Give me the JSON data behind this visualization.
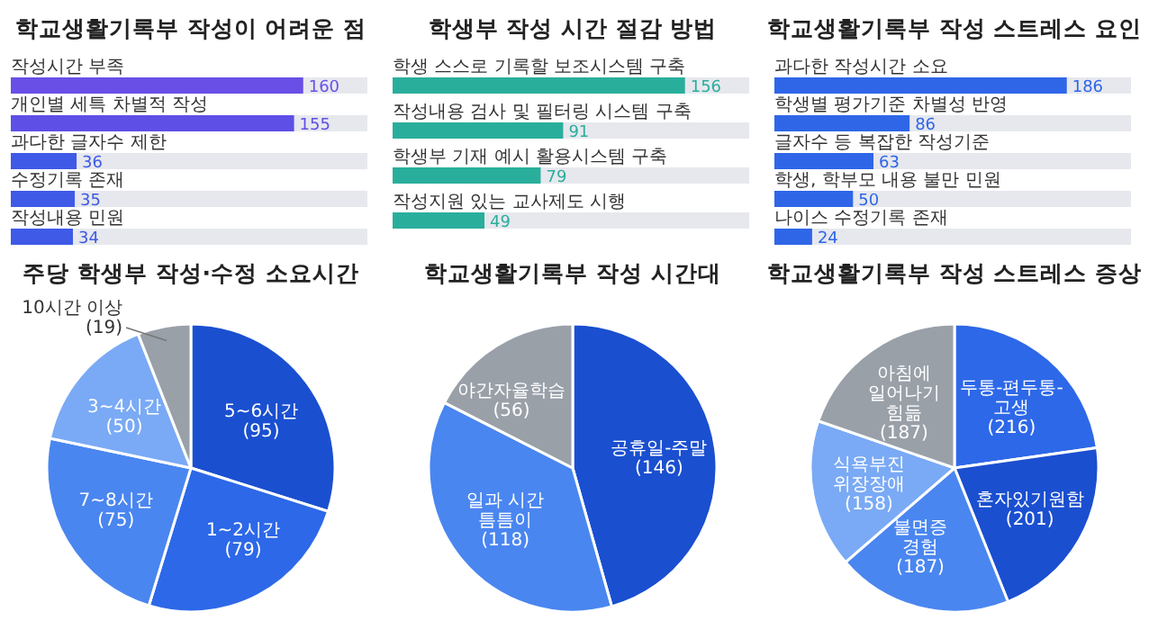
{
  "chart_data": [
    {
      "type": "bar",
      "orientation": "horizontal",
      "title": "학교생활기록부 작성이 어려운 점",
      "categories": [
        "작성시간 부족",
        "개인별 세특 차별적 작성",
        "과다한 글자수 제한",
        "수정기록 존재",
        "작성내용 민원"
      ],
      "values": [
        160,
        155,
        36,
        35,
        34
      ],
      "colors": [
        "#6a4fe6",
        "#5e4fe6",
        "#3f5ae6",
        "#3f5ae6",
        "#3f5ae6"
      ],
      "data_labels": true
    },
    {
      "type": "bar",
      "orientation": "horizontal",
      "title": "학생부 작성 시간 절감 방법",
      "categories": [
        "학생 스스로 기록할 보조시스템 구축",
        "작성내용 검사 및 필터링 시스템 구축",
        "학생부 기재 예시 활용시스템 구축",
        "작성지원 있는 교사제도 시행"
      ],
      "values": [
        156,
        91,
        79,
        49
      ],
      "colors": [
        "#2aae9c",
        "#2aae9c",
        "#2aae9c",
        "#2aae9c"
      ],
      "data_labels": true
    },
    {
      "type": "bar",
      "orientation": "horizontal",
      "title": "학교생활기록부 작성 스트레스 요인",
      "categories": [
        "과다한 작성시간 소요",
        "학생별 평가기준 차별성 반영",
        "글자수 등 복잡한 작성기준",
        "학생, 학부모 내용 불만 민원",
        "나이스 수정기록 존재"
      ],
      "values": [
        186,
        86,
        63,
        50,
        24
      ],
      "colors": [
        "#2f66e8",
        "#2f66e8",
        "#2f66e8",
        "#2f66e8",
        "#2f66e8"
      ],
      "data_labels": true
    },
    {
      "type": "pie",
      "title": "주당 학생부 작성·수정 소요시간",
      "categories": [
        "5~6시간",
        "1~2시간",
        "7~8시간",
        "3~4시간",
        "10시간\n이상"
      ],
      "values": [
        95,
        79,
        75,
        50,
        19
      ],
      "value_labels": [
        "(95)",
        "(79)",
        "(75)",
        "(50)",
        "(19)"
      ],
      "colors": [
        "#1a4fd0",
        "#2d68e8",
        "#4a86f0",
        "#7aaaf5",
        "#9aa0a8"
      ]
    },
    {
      "type": "pie",
      "title": "학교생활기록부 작성 시간대",
      "categories": [
        "공휴일-주말",
        "일과 시간 틈틈이",
        "야간자율학습"
      ],
      "values": [
        146,
        118,
        56
      ],
      "value_labels": [
        "(146)",
        "(118)",
        "(56)"
      ],
      "colors": [
        "#1a4fd0",
        "#4a86f0",
        "#9aa0a8"
      ]
    },
    {
      "type": "pie",
      "title": "학교생활기록부 작성 스트레스 증상",
      "categories": [
        "두통-편두통-고생",
        "혼자있기원함",
        "불면증 경험",
        "식욕부진 위장장애",
        "아침에\n일어나기 힘듦"
      ],
      "values": [
        216,
        201,
        187,
        158,
        187
      ],
      "value_labels": [
        "(216)",
        "(201)",
        "(187)",
        "(158)",
        "(187)"
      ],
      "colors": [
        "#2d68e8",
        "#1a4fd0",
        "#4a86f0",
        "#7aaaf5",
        "#9aa0a8"
      ]
    }
  ]
}
